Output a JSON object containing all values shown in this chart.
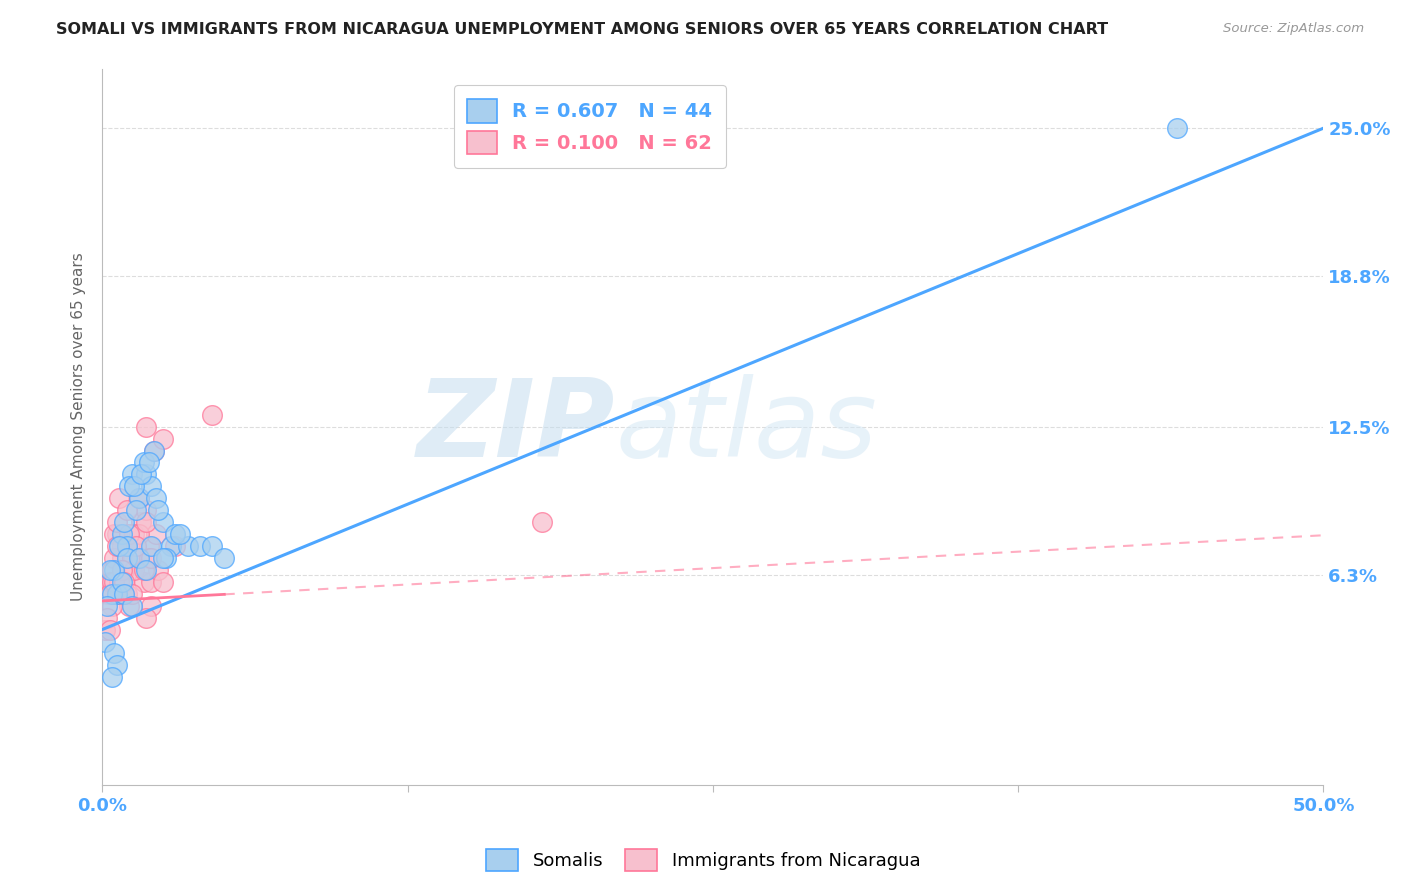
{
  "title": "SOMALI VS IMMIGRANTS FROM NICARAGUA UNEMPLOYMENT AMONG SENIORS OVER 65 YEARS CORRELATION CHART",
  "source": "Source: ZipAtlas.com",
  "ylabel": "Unemployment Among Seniors over 65 years",
  "xlim": [
    0.0,
    50.0
  ],
  "ylim": [
    -2.5,
    27.5
  ],
  "y_ticks": [
    6.3,
    12.5,
    18.8,
    25.0
  ],
  "y_tick_labels": [
    "6.3%",
    "12.5%",
    "18.8%",
    "25.0%"
  ],
  "somali_R": 0.607,
  "somali_N": 44,
  "nicaragua_R": 0.1,
  "nicaragua_N": 62,
  "somali_color": "#A8CFEE",
  "nicaragua_color": "#F7C0CE",
  "somali_line_color": "#4DA6FF",
  "nicaragua_line_color": "#FF7799",
  "somali_x": [
    0.5,
    0.8,
    1.0,
    1.2,
    1.5,
    1.8,
    2.0,
    2.2,
    2.5,
    2.8,
    0.3,
    0.6,
    0.9,
    1.1,
    1.4,
    1.7,
    2.1,
    0.4,
    0.7,
    1.3,
    1.6,
    1.9,
    2.3,
    0.2,
    0.1,
    1.0,
    0.8,
    2.6,
    3.5,
    0.5,
    1.5,
    2.0,
    1.8,
    0.6,
    0.9,
    3.0,
    2.5,
    1.2,
    0.4,
    3.2,
    4.0,
    4.5,
    44.0,
    5.0
  ],
  "somali_y": [
    6.5,
    8.0,
    7.5,
    10.5,
    9.5,
    10.5,
    10.0,
    9.5,
    8.5,
    7.5,
    6.5,
    5.5,
    8.5,
    10.0,
    9.0,
    11.0,
    11.5,
    5.5,
    7.5,
    10.0,
    10.5,
    11.0,
    9.0,
    5.0,
    3.5,
    7.0,
    6.0,
    7.0,
    7.5,
    3.0,
    7.0,
    7.5,
    6.5,
    2.5,
    5.5,
    8.0,
    7.0,
    5.0,
    2.0,
    8.0,
    7.5,
    7.5,
    25.0,
    7.0
  ],
  "nicaragua_x": [
    0.2,
    0.4,
    0.6,
    0.8,
    1.0,
    1.2,
    1.4,
    1.6,
    1.8,
    2.0,
    0.3,
    0.5,
    0.7,
    0.9,
    1.1,
    1.3,
    1.5,
    1.7,
    1.9,
    2.1,
    0.1,
    0.4,
    0.6,
    0.8,
    1.0,
    1.2,
    1.5,
    1.8,
    2.2,
    2.5,
    0.3,
    0.5,
    0.7,
    0.9,
    1.2,
    1.5,
    1.8,
    2.0,
    2.3,
    0.4,
    0.6,
    0.8,
    1.0,
    1.3,
    1.6,
    1.9,
    0.2,
    0.5,
    0.8,
    1.1,
    1.4,
    1.7,
    2.0,
    0.3,
    0.6,
    0.9,
    1.2,
    1.8,
    2.5,
    3.0,
    4.5,
    18.0
  ],
  "nicaragua_y": [
    5.5,
    6.5,
    8.0,
    7.0,
    5.5,
    6.5,
    7.5,
    8.5,
    9.0,
    5.0,
    6.0,
    8.0,
    9.5,
    6.5,
    5.0,
    8.0,
    7.0,
    6.0,
    7.5,
    11.5,
    4.0,
    6.0,
    8.5,
    7.5,
    9.0,
    7.0,
    9.5,
    12.5,
    8.0,
    12.0,
    5.5,
    7.0,
    6.0,
    5.5,
    7.0,
    8.0,
    8.5,
    6.0,
    6.5,
    5.0,
    7.5,
    6.5,
    7.5,
    6.5,
    7.0,
    7.0,
    4.5,
    6.0,
    6.5,
    8.0,
    7.5,
    6.5,
    7.0,
    4.0,
    5.5,
    6.0,
    5.5,
    4.5,
    6.0,
    7.5,
    13.0,
    8.5
  ],
  "watermark_zip": "ZIP",
  "watermark_atlas": "atlas",
  "background_color": "#FFFFFF",
  "grid_color": "#DDDDDD",
  "somali_line_intercept": 4.0,
  "somali_line_slope": 0.42,
  "nicaragua_line_intercept": 5.2,
  "nicaragua_line_slope": 0.055,
  "nicaragua_solid_end": 5.0,
  "nicaragua_dash_start": 5.0
}
